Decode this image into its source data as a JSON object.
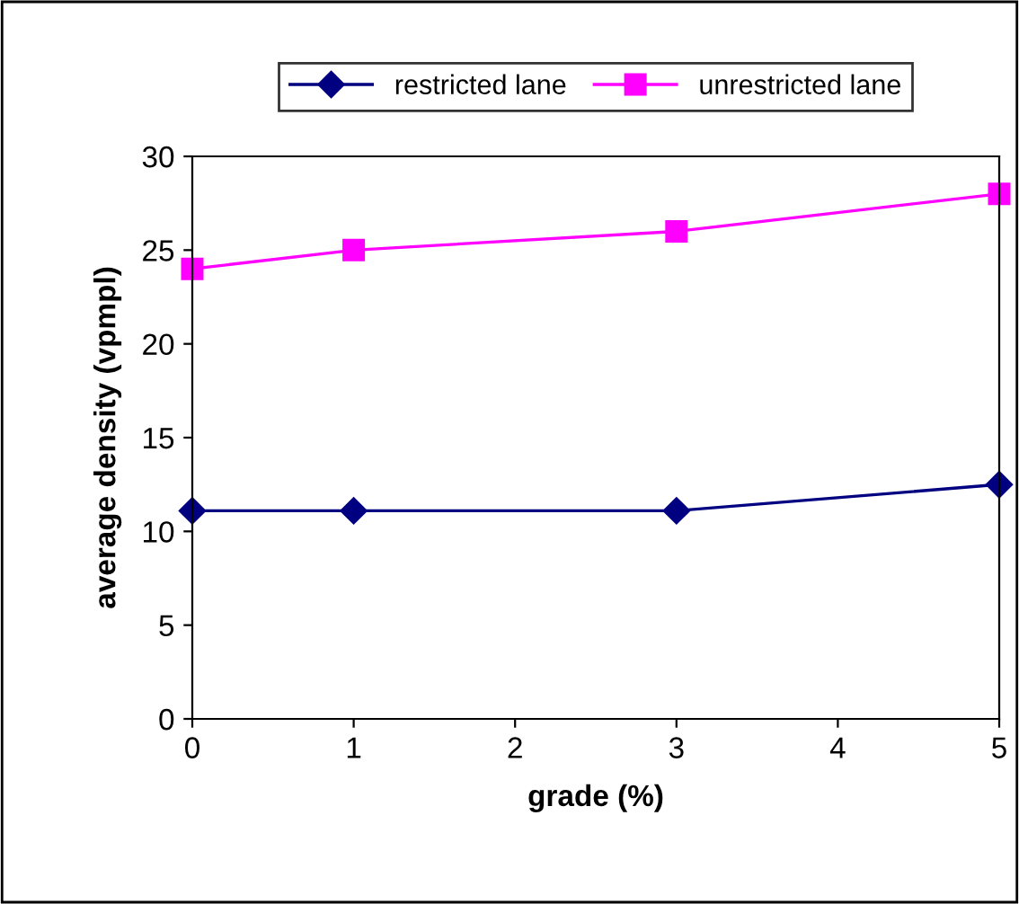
{
  "chart_data": {
    "type": "line",
    "xlabel": "grade (%)",
    "ylabel": "average density (vpmpl)",
    "x": [
      0,
      1,
      3,
      5
    ],
    "series": [
      {
        "name": "restricted lane",
        "color": "#000080",
        "values": [
          11.1,
          11.1,
          11.1,
          12.5
        ],
        "marker": "diamond"
      },
      {
        "name": "unrestricted lane",
        "color": "#ff00ff",
        "values": [
          24,
          25,
          26,
          28
        ],
        "marker": "square"
      }
    ],
    "xlim": [
      0,
      5
    ],
    "xticks": [
      0,
      1,
      2,
      3,
      4,
      5
    ],
    "ylim": [
      0,
      30
    ],
    "yticks": [
      0,
      5,
      10,
      15,
      20,
      25,
      30
    ],
    "grid": false,
    "legend": "top",
    "line_style": "solid"
  }
}
